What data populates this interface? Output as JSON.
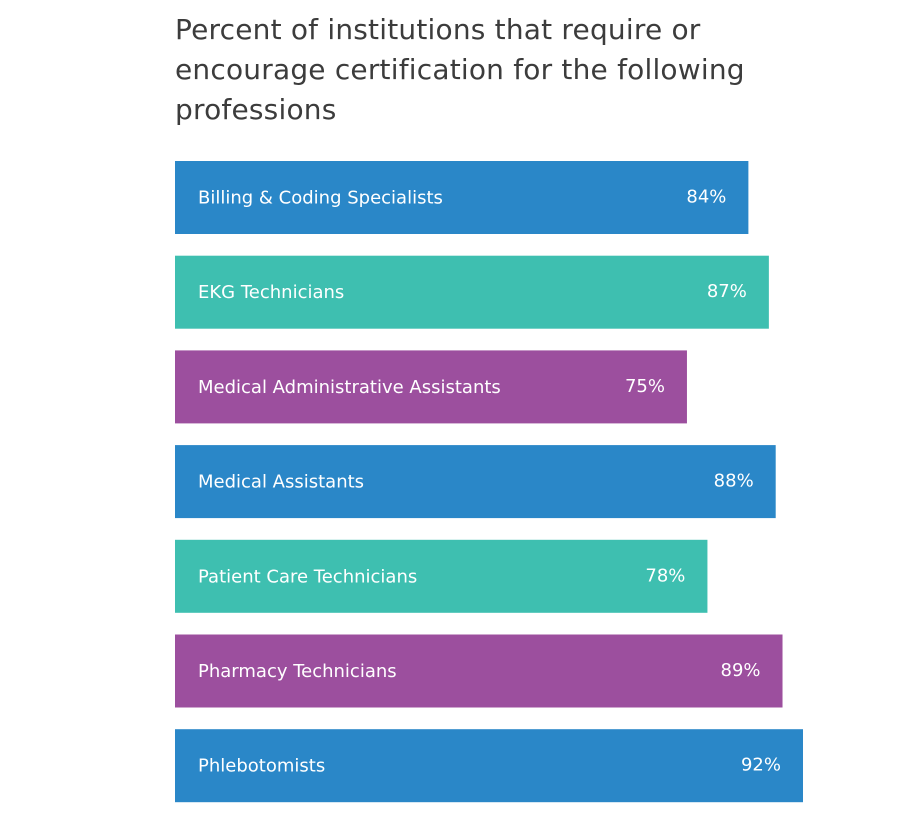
{
  "chart_data": {
    "type": "bar",
    "orientation": "horizontal",
    "title": "Percent of institutions that require or encourage certification for the following professions",
    "categories": [
      "Billing & Coding Specialists",
      "EKG Technicians",
      "Medical Administrative Assistants",
      "Medical Assistants",
      "Patient Care Technicians",
      "Pharmacy Technicians",
      "Phlebotomists"
    ],
    "values": [
      84,
      87,
      75,
      88,
      78,
      89,
      92
    ],
    "value_labels": [
      "84%",
      "87%",
      "75%",
      "88%",
      "78%",
      "89%",
      "92%"
    ],
    "colors": [
      "#2a87c8",
      "#3ebfb0",
      "#9c4f9e",
      "#2a87c8",
      "#3ebfb0",
      "#9c4f9e",
      "#2a87c8"
    ],
    "xlim": [
      0,
      92
    ],
    "grid": false
  }
}
